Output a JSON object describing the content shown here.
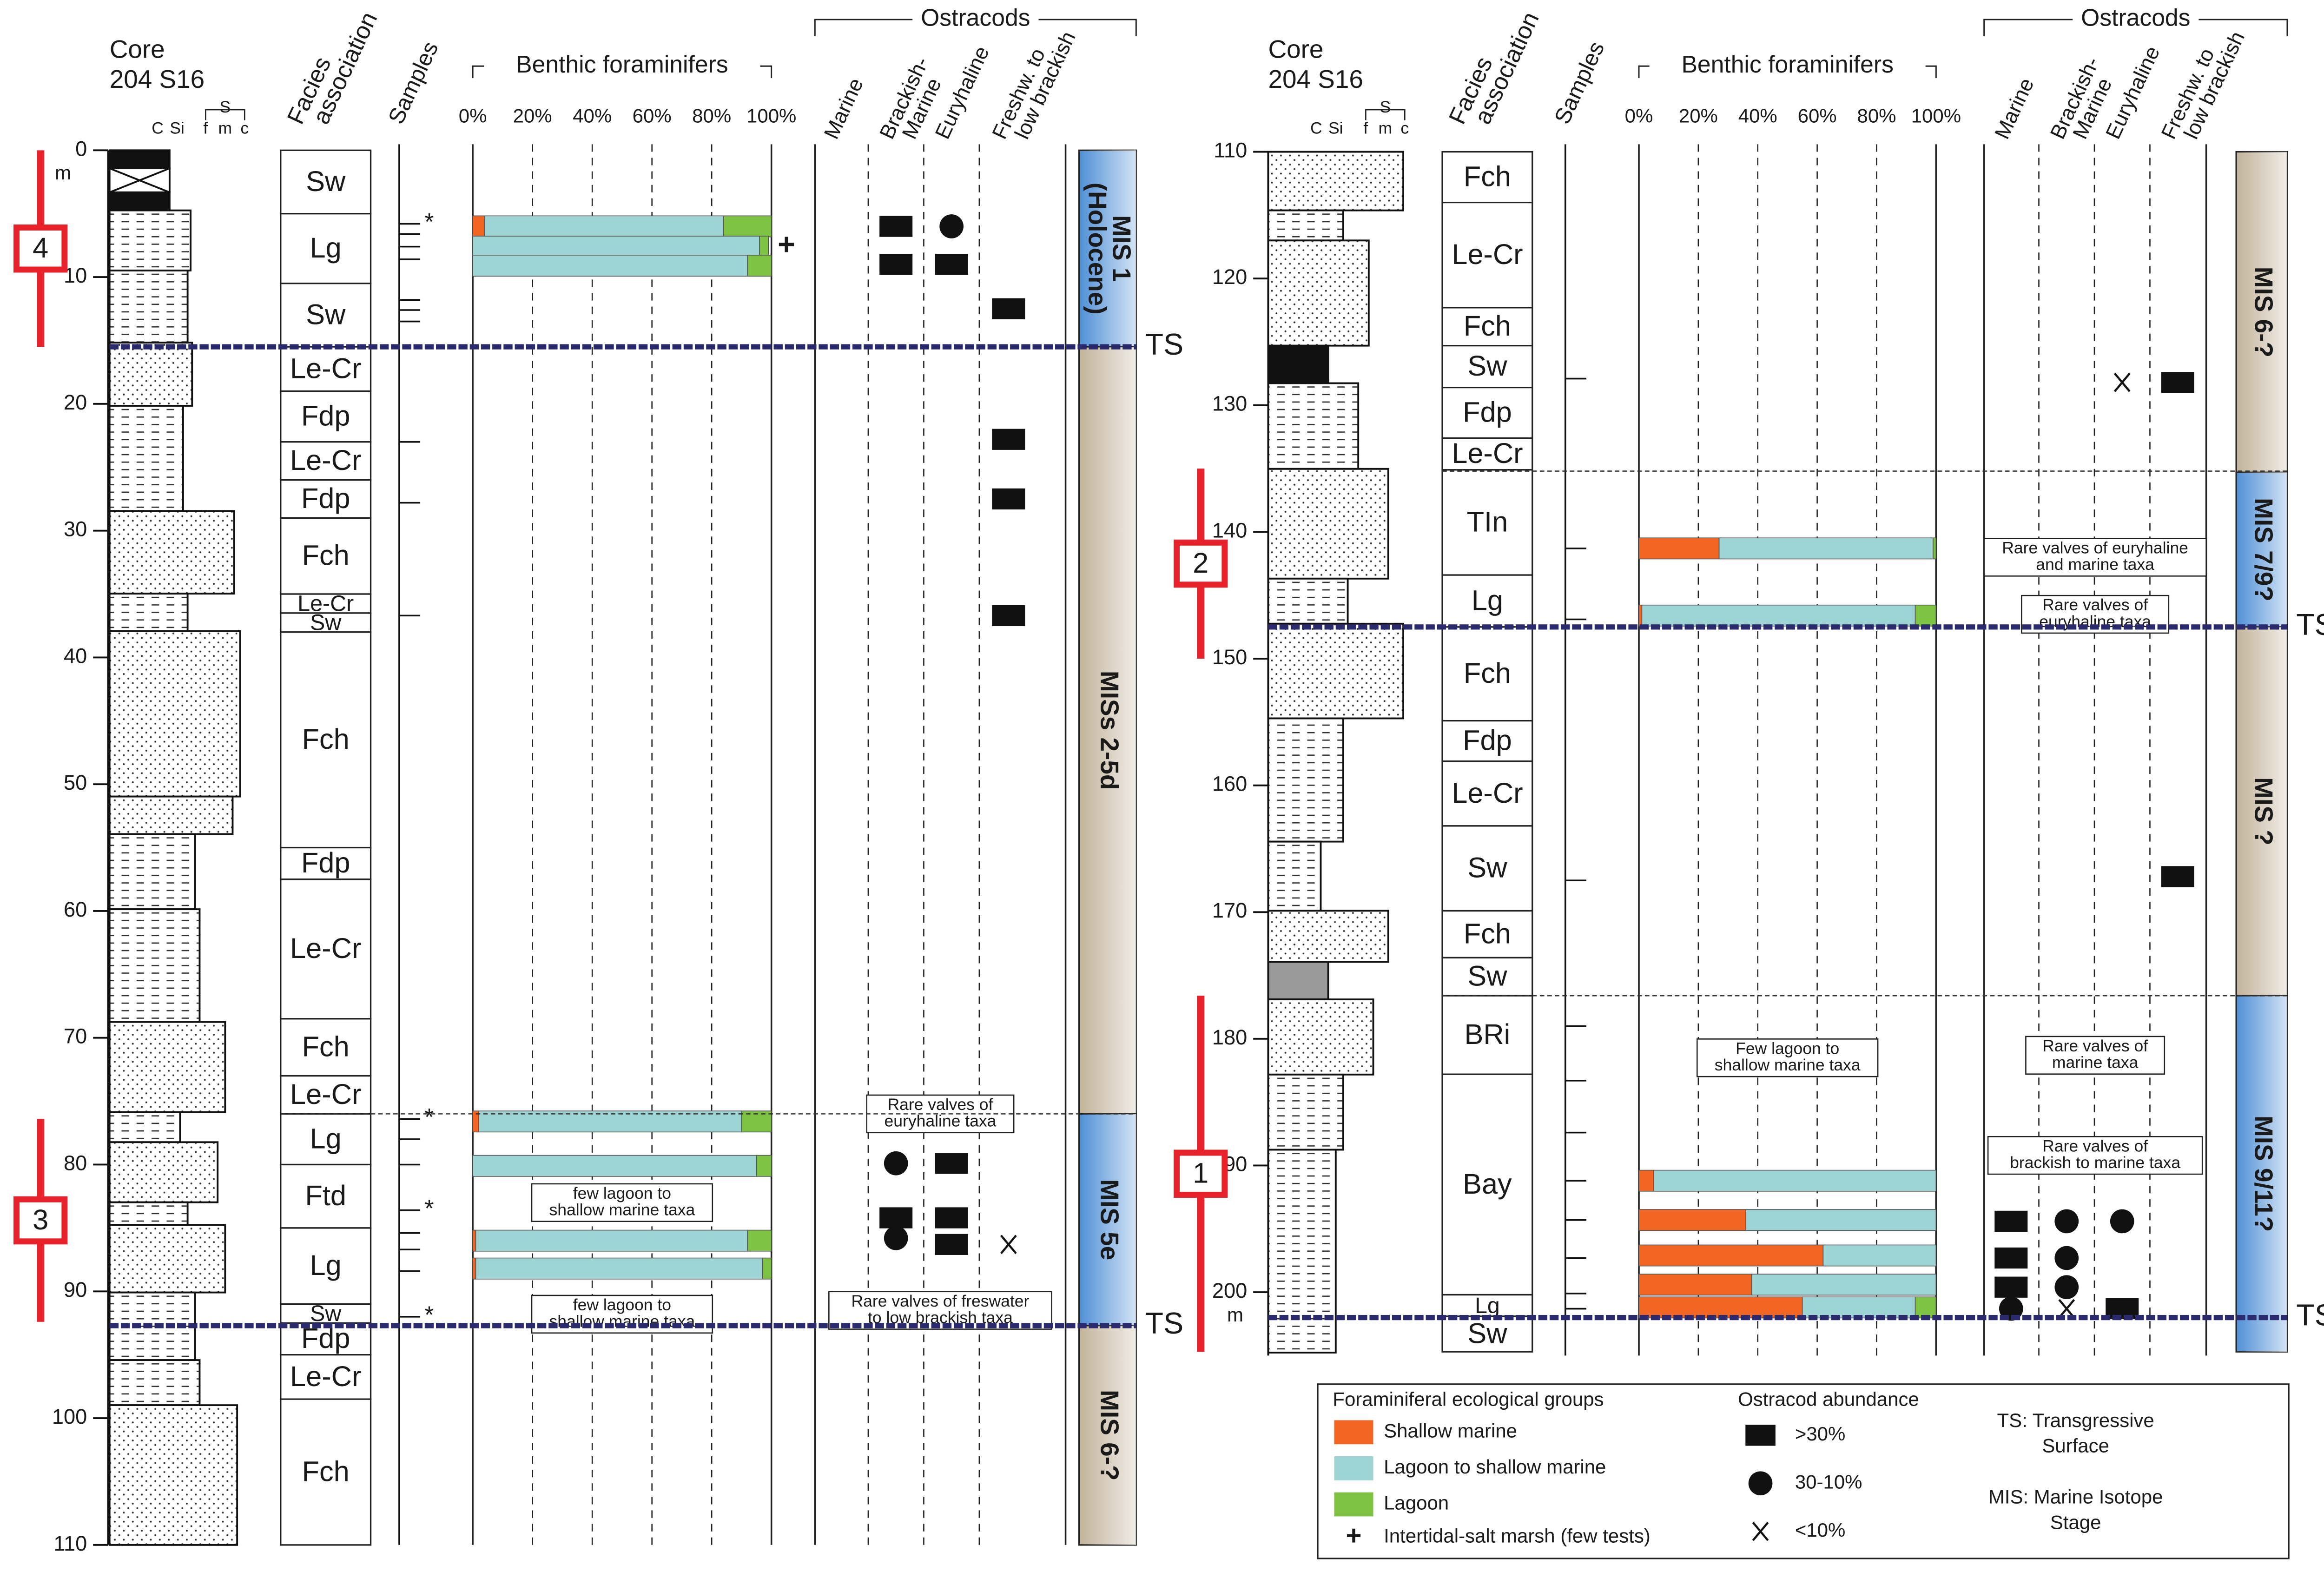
{
  "groups": [
    {
      "name": "Shallow marine",
      "color": "#f26522"
    },
    {
      "name": "Lagoon to shallow marine",
      "color": "#9fd4d4"
    },
    {
      "name": "Lagoon",
      "color": "#7dc243"
    }
  ],
  "panels": [
    {
      "core_title": "Core",
      "core_id": "204 S16",
      "grain_labels": [
        "C",
        "Si",
        "S",
        "f",
        "m",
        "c"
      ],
      "headers": {
        "facies": [
          "Facies",
          "association"
        ],
        "samples": [
          "Samples"
        ],
        "forams": "Benthic foraminifers",
        "ostracods": "Ostracods"
      },
      "ostracod_columns": [
        [
          "Marine"
        ],
        [
          "Brackish-",
          "Marine"
        ],
        [
          "Euryhaline"
        ],
        [
          "Freshw. to",
          "low brackish"
        ]
      ],
      "ylim": [
        0,
        110
      ],
      "yticks": [
        0,
        10,
        20,
        30,
        40,
        50,
        60,
        70,
        80,
        90,
        100,
        110
      ],
      "depth_unit": "m",
      "xlim": [
        0,
        100
      ],
      "xticks": [
        {
          "value": 0,
          "label": "0%"
        },
        {
          "value": 20,
          "label": "20%"
        },
        {
          "value": 40,
          "label": "40%"
        },
        {
          "value": 60,
          "label": "60%"
        },
        {
          "value": 80,
          "label": "80%"
        },
        {
          "value": 100,
          "label": "100%"
        }
      ],
      "facies": [
        {
          "label": "Sw",
          "top": 0,
          "bottom": 5
        },
        {
          "label": "Lg",
          "top": 5,
          "bottom": 10.5
        },
        {
          "label": "Sw",
          "top": 10.5,
          "bottom": 15.5
        },
        {
          "label": "Le-Cr",
          "top": 15.5,
          "bottom": 19
        },
        {
          "label": "Fdp",
          "top": 19,
          "bottom": 23
        },
        {
          "label": "Le-Cr",
          "top": 23,
          "bottom": 26
        },
        {
          "label": "Fdp",
          "top": 26,
          "bottom": 29
        },
        {
          "label": "Fch",
          "top": 29,
          "bottom": 35
        },
        {
          "label": "Le-Cr",
          "top": 35,
          "bottom": 36.5
        },
        {
          "label": "Sw",
          "top": 36.5,
          "bottom": 38
        },
        {
          "label": "Fch",
          "top": 38,
          "bottom": 55
        },
        {
          "label": "Fdp",
          "top": 55,
          "bottom": 57.5
        },
        {
          "label": "Le-Cr",
          "top": 57.5,
          "bottom": 68.5
        },
        {
          "label": "Fch",
          "top": 68.5,
          "bottom": 73
        },
        {
          "label": "Le-Cr",
          "top": 73,
          "bottom": 76
        },
        {
          "label": "Lg",
          "top": 76,
          "bottom": 80
        },
        {
          "label": "Ftd",
          "top": 80,
          "bottom": 85
        },
        {
          "label": "Lg",
          "top": 85,
          "bottom": 91
        },
        {
          "label": "Sw",
          "top": 91,
          "bottom": 92.5
        },
        {
          "label": "Fdp",
          "top": 92.5,
          "bottom": 95
        },
        {
          "label": "Le-Cr",
          "top": 95,
          "bottom": 98.5
        },
        {
          "label": "Fch",
          "top": 98.5,
          "bottom": 110
        }
      ],
      "stages": [
        {
          "label": [
            "MIS 1",
            "(Holocene)"
          ],
          "top": 0,
          "bottom": 15.5,
          "color": "#4f8fd6"
        },
        {
          "label": [
            "MISs 2-5d"
          ],
          "top": 15.5,
          "bottom": 76,
          "color": "#c2b39a"
        },
        {
          "label": [
            "MIS 5e"
          ],
          "top": 76,
          "bottom": 92.7,
          "color": "#4f8fd6"
        },
        {
          "label": [
            "MIS 6-?"
          ],
          "top": 92.7,
          "bottom": 110,
          "color": "#c2b39a"
        }
      ],
      "samples": [
        {
          "depth": 5.8,
          "marker": "*"
        },
        {
          "depth": 6.6
        },
        {
          "depth": 7.6
        },
        {
          "depth": 8.6
        },
        {
          "depth": 11.8
        },
        {
          "depth": 12.6
        },
        {
          "depth": 13.5
        },
        {
          "depth": 23
        },
        {
          "depth": 27.8
        },
        {
          "depth": 36.7
        },
        {
          "depth": 76.4,
          "marker": "*"
        },
        {
          "depth": 78
        },
        {
          "depth": 80
        },
        {
          "depth": 83.6,
          "marker": "*"
        },
        {
          "depth": 85.4
        },
        {
          "depth": 86.7
        },
        {
          "depth": 88.4
        },
        {
          "depth": 92,
          "marker": "*"
        }
      ],
      "forams": [
        {
          "depth": 6,
          "values": [
            4,
            80,
            16
          ]
        },
        {
          "depth": 7.6,
          "values": [
            0,
            96,
            3
          ],
          "marker": "+"
        },
        {
          "depth": 9.1,
          "values": [
            0,
            92,
            8
          ]
        },
        {
          "depth": 76.6,
          "values": [
            2,
            88,
            10
          ]
        },
        {
          "depth": 80.1,
          "values": [
            0,
            95,
            5
          ]
        },
        {
          "depth": 86,
          "values": [
            1,
            91,
            8
          ]
        },
        {
          "depth": 88.2,
          "values": [
            1,
            96,
            3
          ]
        }
      ],
      "ostracods": [
        {
          "depth": 6,
          "column": 1,
          "symbol": "rect"
        },
        {
          "depth": 6,
          "column": 2,
          "symbol": "circle"
        },
        {
          "depth": 9,
          "column": 1,
          "symbol": "rect"
        },
        {
          "depth": 9,
          "column": 2,
          "symbol": "rect"
        },
        {
          "depth": 12.5,
          "column": 3,
          "symbol": "rect"
        },
        {
          "depth": 22.8,
          "column": 3,
          "symbol": "rect"
        },
        {
          "depth": 27.5,
          "column": 3,
          "symbol": "rect"
        },
        {
          "depth": 36.7,
          "column": 3,
          "symbol": "rect"
        },
        {
          "depth": 79.9,
          "column": 1,
          "symbol": "circle"
        },
        {
          "depth": 79.9,
          "column": 2,
          "symbol": "rect"
        },
        {
          "depth": 84.2,
          "column": 1,
          "symbol": "rect"
        },
        {
          "depth": 84.2,
          "column": 2,
          "symbol": "rect"
        },
        {
          "depth": 85.8,
          "column": 1,
          "symbol": "circle"
        },
        {
          "depth": 86.3,
          "column": 2,
          "symbol": "rect"
        },
        {
          "depth": 86.3,
          "column": 3,
          "symbol": "x"
        }
      ],
      "notes": [
        {
          "lines": [
            "Rare valves of",
            "euryhaline taxa"
          ],
          "depth": 76,
          "column": "ostracods"
        },
        {
          "lines": [
            "few lagoon to",
            "shallow marine taxa"
          ],
          "depth": 83,
          "column": "forams"
        },
        {
          "lines": [
            "few lagoon to",
            "shallow marine taxa"
          ],
          "depth": 91.8,
          "column": "forams"
        },
        {
          "lines": [
            "Rare valves of freswater",
            "to low brackish taxa"
          ],
          "depth": 91.5,
          "column": "ostracods"
        }
      ],
      "ts": [
        {
          "depth": 15.5,
          "label": "TS"
        },
        {
          "depth": 92.7,
          "label": "TS"
        }
      ],
      "boundaries": [
        76
      ],
      "intervals": [
        {
          "label": "4",
          "top": 0,
          "bottom": 15.5
        },
        {
          "label": "3",
          "top": 76.4,
          "bottom": 92.4
        }
      ]
    },
    {
      "core_title": "Core",
      "core_id": "204 S16",
      "grain_labels": [
        "C",
        "Si",
        "S",
        "f",
        "m",
        "c"
      ],
      "headers": {
        "facies": [
          "Facies",
          "association"
        ],
        "samples": [
          "Samples"
        ],
        "forams": "Benthic foraminifers",
        "ostracods": "Ostracods"
      },
      "ostracod_columns": [
        [
          "Marine"
        ],
        [
          "Brackish-",
          "Marine"
        ],
        [
          "Euryhaline"
        ],
        [
          "Freshw. to",
          "low brackish"
        ]
      ],
      "ylim": [
        110,
        205
      ],
      "yticks": [
        110,
        120,
        130,
        140,
        150,
        160,
        170,
        180,
        190,
        200
      ],
      "depth_unit": "m",
      "xlim": [
        0,
        100
      ],
      "xticks": [
        {
          "value": 0,
          "label": "0%"
        },
        {
          "value": 20,
          "label": "20%"
        },
        {
          "value": 40,
          "label": "40%"
        },
        {
          "value": 60,
          "label": "60%"
        },
        {
          "value": 80,
          "label": "80%"
        },
        {
          "value": 100,
          "label": "100%"
        }
      ],
      "facies": [
        {
          "label": "Fch",
          "top": 110,
          "bottom": 114
        },
        {
          "label": "Le-Cr",
          "top": 114,
          "bottom": 122.3
        },
        {
          "label": "Fch",
          "top": 122.3,
          "bottom": 125.3
        },
        {
          "label": "Sw",
          "top": 125.3,
          "bottom": 128.6
        },
        {
          "label": "Fdp",
          "top": 128.6,
          "bottom": 132.6
        },
        {
          "label": "Le-Cr",
          "top": 132.6,
          "bottom": 135.1
        },
        {
          "label": "TIn",
          "top": 135.1,
          "bottom": 143.4
        },
        {
          "label": "Lg",
          "top": 143.4,
          "bottom": 147.5
        },
        {
          "label": "Fch",
          "top": 147.5,
          "bottom": 154.9
        },
        {
          "label": "Fdp",
          "top": 154.9,
          "bottom": 158.1
        },
        {
          "label": "Le-Cr",
          "top": 158.1,
          "bottom": 163.2
        },
        {
          "label": "Sw",
          "top": 163.2,
          "bottom": 169.9
        },
        {
          "label": "Fch",
          "top": 169.9,
          "bottom": 173.6
        },
        {
          "label": "Sw",
          "top": 173.6,
          "bottom": 176.6
        },
        {
          "label": "BRi",
          "top": 176.6,
          "bottom": 182.8
        },
        {
          "label": "Bay",
          "top": 182.8,
          "bottom": 200.2
        },
        {
          "label": "Lg",
          "top": 200.2,
          "bottom": 201.9
        },
        {
          "label": "Sw",
          "top": 201.9,
          "bottom": 204.7
        }
      ],
      "stages": [
        {
          "label": [
            "MIS 6-?"
          ],
          "top": 110,
          "bottom": 135.3,
          "color": "#c2b39a"
        },
        {
          "label": [
            "MIS 7/9?"
          ],
          "top": 135.3,
          "bottom": 147.5,
          "color": "#4f8fd6"
        },
        {
          "label": [
            "MIS ?"
          ],
          "top": 147.5,
          "bottom": 176.6,
          "color": "#c2b39a"
        },
        {
          "label": [
            "MIS 9/11?"
          ],
          "top": 176.6,
          "bottom": 204.7,
          "color": "#4f8fd6"
        }
      ],
      "samples": [
        {
          "depth": 127.9
        },
        {
          "depth": 141.3
        },
        {
          "depth": 146.9
        },
        {
          "depth": 167.5
        },
        {
          "depth": 179
        },
        {
          "depth": 183.3
        },
        {
          "depth": 187.4
        },
        {
          "depth": 191.2
        },
        {
          "depth": 194.3
        },
        {
          "depth": 197.3
        },
        {
          "depth": 200.1
        },
        {
          "depth": 201.3
        }
      ],
      "forams": [
        {
          "depth": 141.3,
          "values": [
            27,
            72,
            1
          ]
        },
        {
          "depth": 146.6,
          "values": [
            1,
            92,
            7
          ]
        },
        {
          "depth": 191.2,
          "values": [
            5,
            95,
            0
          ]
        },
        {
          "depth": 194.3,
          "values": [
            36,
            64,
            0
          ]
        },
        {
          "depth": 197.1,
          "values": [
            62,
            38,
            0
          ]
        },
        {
          "depth": 199.4,
          "values": [
            38,
            62,
            0
          ]
        },
        {
          "depth": 201.2,
          "values": [
            55,
            38,
            7
          ]
        }
      ],
      "ostracods": [
        {
          "depth": 128.2,
          "column": 2,
          "symbol": "x"
        },
        {
          "depth": 128.2,
          "column": 3,
          "symbol": "rect"
        },
        {
          "depth": 167.2,
          "column": 3,
          "symbol": "rect"
        },
        {
          "depth": 194.4,
          "column": 0,
          "symbol": "rect"
        },
        {
          "depth": 194.4,
          "column": 1,
          "symbol": "circle"
        },
        {
          "depth": 194.4,
          "column": 2,
          "symbol": "circle"
        },
        {
          "depth": 197.3,
          "column": 0,
          "symbol": "rect"
        },
        {
          "depth": 197.3,
          "column": 1,
          "symbol": "circle"
        },
        {
          "depth": 199.6,
          "column": 0,
          "symbol": "rect"
        },
        {
          "depth": 199.6,
          "column": 1,
          "symbol": "circle"
        },
        {
          "depth": 201.3,
          "column": 0,
          "symbol": "circle"
        },
        {
          "depth": 201.3,
          "column": 1,
          "symbol": "x"
        },
        {
          "depth": 201.3,
          "column": 2,
          "symbol": "rect"
        }
      ],
      "notes": [
        {
          "lines": [
            "Rare valves of euryhaline",
            "and marine taxa"
          ],
          "depth": 142,
          "column": "ostracods"
        },
        {
          "lines": [
            "Rare valves of",
            "euryhaline taxa"
          ],
          "depth": 146.5,
          "column": "ostracods"
        },
        {
          "lines": [
            "Few lagoon to",
            "shallow marine taxa"
          ],
          "depth": 181.5,
          "column": "forams"
        },
        {
          "lines": [
            "Rare valves of",
            "marine taxa"
          ],
          "depth": 181.3,
          "column": "ostracods"
        },
        {
          "lines": [
            "Rare valves of",
            "brackish to marine taxa"
          ],
          "depth": 189.2,
          "column": "ostracods"
        }
      ],
      "ts": [
        {
          "depth": 147.5,
          "label": "TS"
        },
        {
          "depth": 202,
          "label": "TS"
        }
      ],
      "boundaries": [
        135.2,
        176.6
      ],
      "intervals": [
        {
          "label": "2",
          "top": 135,
          "bottom": 150
        },
        {
          "label": "1",
          "top": 176.6,
          "bottom": 204.7
        }
      ]
    }
  ],
  "legend": {
    "forams_title": "Foraminiferal ecological groups",
    "intertidal": {
      "symbol": "+",
      "name": "Intertidal-salt marsh (few tests)"
    },
    "ostracod_title": "Ostracod abundance",
    "abundance": [
      {
        "symbol": "rect",
        "label": ">30%"
      },
      {
        "symbol": "circle",
        "label": "30-10%"
      },
      {
        "symbol": "x",
        "label": "<10%"
      }
    ],
    "abbreviations": [
      [
        "TS: Transgressive",
        "Surface"
      ],
      [
        "MIS: Marine Isotope",
        "Stage"
      ]
    ]
  }
}
